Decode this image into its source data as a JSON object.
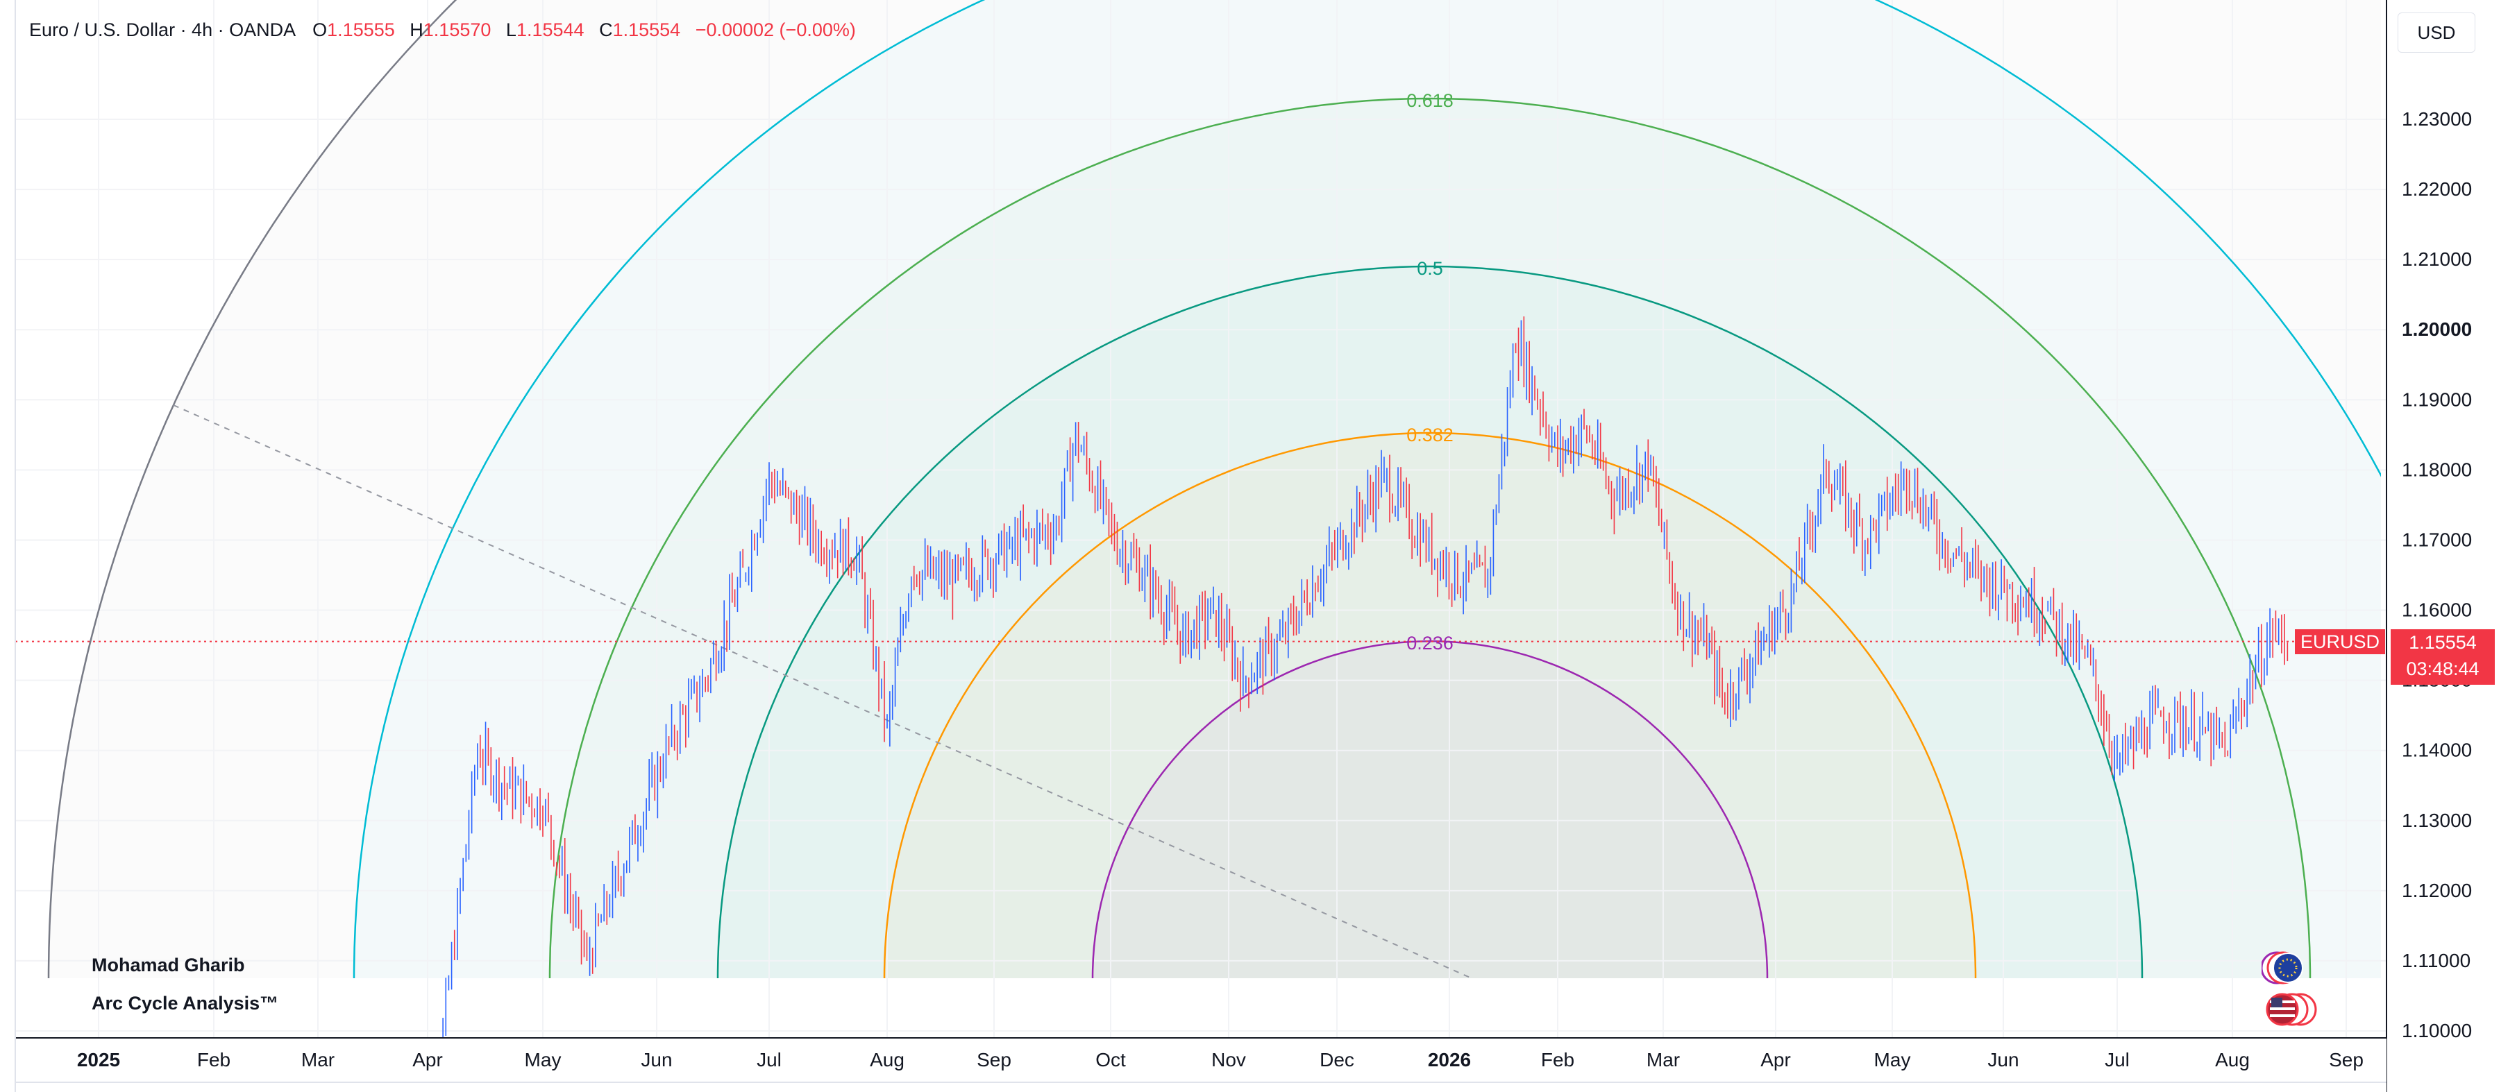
{
  "legend": {
    "symbol": "Euro / U.S. Dollar · 4h · OANDA",
    "open_key": "O",
    "open": "1.15555",
    "high_key": "H",
    "high": "1.15570",
    "low_key": "L",
    "low": "1.15544",
    "close_key": "C",
    "close": "1.15554",
    "change": "−0.00002 (−0.00%)"
  },
  "currency_button": "USD",
  "price_scale": {
    "ticks": [
      "1.23000",
      "1.22000",
      "1.21000",
      "1.20000",
      "1.19000",
      "1.18000",
      "1.17000",
      "1.16000",
      "1.15000",
      "1.14000",
      "1.13000",
      "1.12000",
      "1.11000",
      "1.10000"
    ],
    "bold_tick": "1.20000"
  },
  "current_price": {
    "symbol_label": "EURUSD",
    "price": "1.15554",
    "countdown": "03:48:44"
  },
  "time_axis": {
    "labels": [
      "2025",
      "Feb",
      "Mar",
      "Apr",
      "May",
      "Jun",
      "Jul",
      "Aug",
      "Sep",
      "Oct",
      "Nov",
      "Dec",
      "2026",
      "Feb",
      "Mar",
      "Apr",
      "May",
      "Jun",
      "Jul",
      "Aug",
      "Sep"
    ],
    "bold_labels": [
      "2025",
      "2026"
    ]
  },
  "fib_arcs": [
    {
      "level": "0.236",
      "color": "#9c27b0"
    },
    {
      "level": "0.382",
      "color": "#ff9800"
    },
    {
      "level": "0.5",
      "color": "#089981"
    },
    {
      "level": "0.618",
      "color": "#4caf50"
    }
  ],
  "outer_arc_colors": {
    "cyan": "#00bcd4",
    "gray": "#787b86"
  },
  "watermark": {
    "author": "Mohamad Gharib",
    "title": "Arc Cycle Analysis™"
  },
  "icons": [
    "eu-flag-icon",
    "us-flag-icon"
  ],
  "candle_colors": {
    "up": "#2962ff",
    "down": "#f23645"
  },
  "chart_data": {
    "type": "candlestick",
    "title": "Euro / U.S. Dollar · 4h · OANDA",
    "x_range": [
      "2025-01",
      "2026-09"
    ],
    "ylim": [
      1.1,
      1.23
    ],
    "series": [
      {
        "name": "EURUSD",
        "x": [
          "2025-03-28",
          "2025-04-05",
          "2025-04-14",
          "2025-04-21",
          "2025-05-01",
          "2025-05-13",
          "2025-05-20",
          "2025-06-05",
          "2025-06-14",
          "2025-06-24",
          "2025-07-01",
          "2025-07-14",
          "2025-07-24",
          "2025-08-01",
          "2025-08-08",
          "2025-08-20",
          "2025-09-05",
          "2025-09-17",
          "2025-09-22",
          "2025-10-02",
          "2025-10-10",
          "2025-10-20",
          "2025-10-28",
          "2025-11-05",
          "2025-11-16",
          "2025-11-25",
          "2025-12-05",
          "2025-12-14",
          "2025-12-24",
          "2026-01-05",
          "2026-01-12",
          "2026-01-20",
          "2026-01-27",
          "2026-02-01",
          "2026-02-08",
          "2026-02-16",
          "2026-02-25",
          "2026-03-05",
          "2026-03-13",
          "2026-03-18",
          "2026-03-28",
          "2026-04-05",
          "2026-04-14",
          "2026-04-24",
          "2026-05-05",
          "2026-05-15",
          "2026-05-25",
          "2026-06-02",
          "2026-06-12",
          "2026-06-24",
          "2026-07-01",
          "2026-07-12",
          "2026-07-24",
          "2026-07-30",
          "2026-08-05",
          "2026-08-12",
          "2026-08-16"
        ],
        "close": [
          1.085,
          1.1,
          1.14,
          1.135,
          1.132,
          1.11,
          1.12,
          1.142,
          1.15,
          1.165,
          1.179,
          1.17,
          1.168,
          1.143,
          1.166,
          1.164,
          1.169,
          1.172,
          1.185,
          1.17,
          1.165,
          1.156,
          1.16,
          1.15,
          1.156,
          1.164,
          1.172,
          1.179,
          1.17,
          1.164,
          1.165,
          1.199,
          1.189,
          1.182,
          1.186,
          1.176,
          1.181,
          1.16,
          1.155,
          1.147,
          1.155,
          1.162,
          1.18,
          1.17,
          1.179,
          1.17,
          1.165,
          1.163,
          1.16,
          1.152,
          1.138,
          1.145,
          1.143,
          1.14,
          1.149,
          1.157,
          1.1555
        ]
      }
    ]
  }
}
